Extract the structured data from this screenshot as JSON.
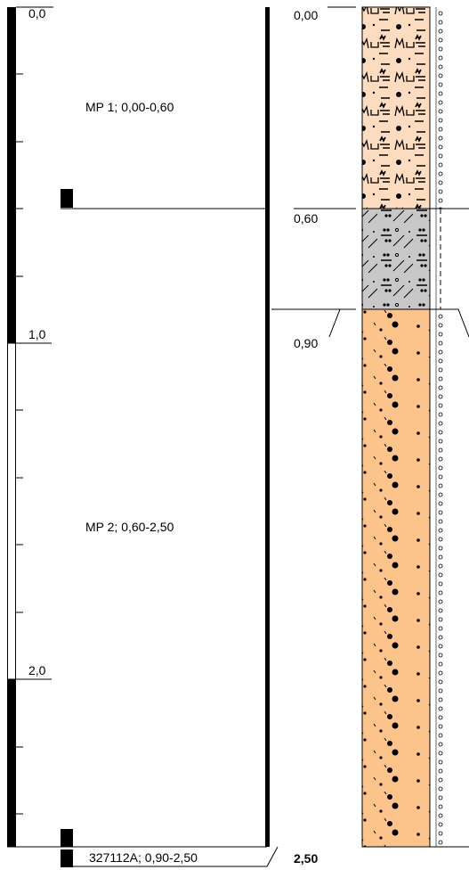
{
  "depth_scale": {
    "labels": [
      "0,0",
      "1,0",
      "2,0"
    ]
  },
  "samples": [
    {
      "label": "MP 1; 0,00-0,60"
    },
    {
      "label": "MP 2; 0,60-2,50"
    }
  ],
  "core_sample": {
    "label": "327112A; 0,90-2,50"
  },
  "layer_depths": [
    "0,00",
    "0,60",
    "0,90",
    "2,50"
  ]
}
